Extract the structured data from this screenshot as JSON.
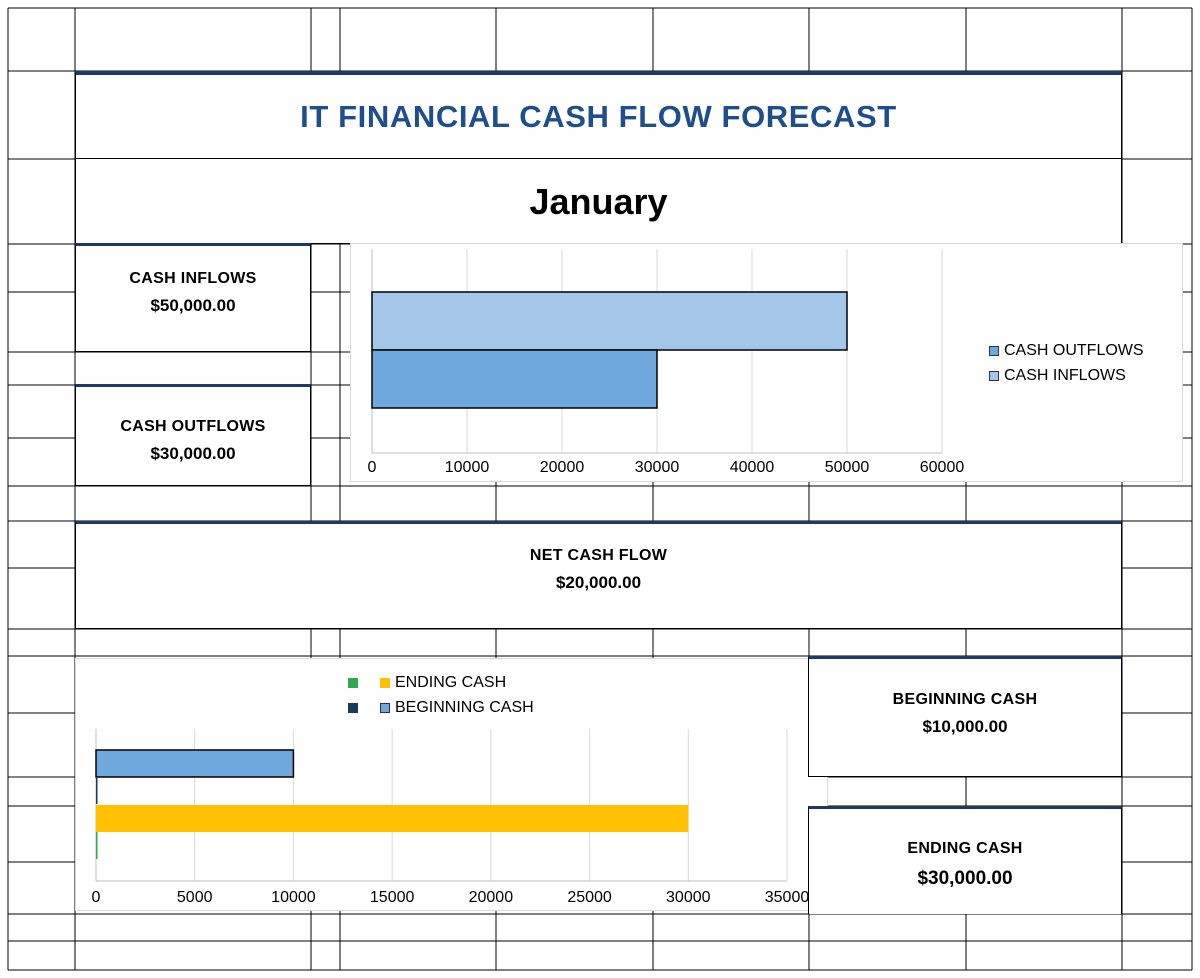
{
  "page": {
    "title": "IT FINANCIAL CASH FLOW FORECAST",
    "month": "January"
  },
  "cards": {
    "cash_inflows": {
      "label": "CASH INFLOWS",
      "value": "$50,000.00"
    },
    "cash_outflows": {
      "label": "CASH OUTFLOWS",
      "value": "$30,000.00"
    },
    "net_cash_flow": {
      "label": "NET CASH FLOW",
      "value": "$20,000.00"
    },
    "beginning_cash": {
      "label": "BEGINNING CASH",
      "value": "$10,000.00"
    },
    "ending_cash": {
      "label": "ENDING CASH",
      "value": "$30,000.00"
    }
  },
  "colors": {
    "title": "#1f4e8c",
    "accent_border": "#1f3864",
    "inflow_bar": "#a4c6e8",
    "outflow_bar": "#6fa8dc",
    "beginning_cash_bar": "#6fa8dc",
    "ending_cash_bar": "#ffc000",
    "ending_cash_marker": "#2eaa4f",
    "beginning_cash_marker": "#1b3a5c",
    "gridline": "#d9d9d9"
  },
  "chart_data": [
    {
      "type": "bar",
      "orientation": "horizontal",
      "title": "",
      "xlabel": "",
      "ylabel": "",
      "xlim": [
        0,
        60000
      ],
      "x_ticks": [
        0,
        10000,
        20000,
        30000,
        40000,
        50000,
        60000
      ],
      "grid": true,
      "legend": "right",
      "series": [
        {
          "name": "CASH INFLOWS",
          "value": 50000,
          "color": "#a4c6e8"
        },
        {
          "name": "CASH OUTFLOWS",
          "value": 30000,
          "color": "#6fa8dc"
        }
      ],
      "legend_entries": [
        "CASH OUTFLOWS",
        "CASH INFLOWS"
      ]
    },
    {
      "type": "bar",
      "orientation": "horizontal",
      "title": "",
      "xlabel": "",
      "ylabel": "",
      "xlim": [
        0,
        35000
      ],
      "x_ticks": [
        0,
        5000,
        10000,
        15000,
        20000,
        25000,
        30000,
        35000
      ],
      "grid": true,
      "legend": "top",
      "series": [
        {
          "name": "BEGINNING CASH",
          "value": 10000,
          "color": "#6fa8dc",
          "marker_color": "#1b3a5c"
        },
        {
          "name": "ENDING CASH",
          "value": 30000,
          "color": "#ffc000",
          "marker_color": "#2eaa4f"
        }
      ],
      "legend_entries": [
        "ENDING CASH",
        "BEGINNING CASH"
      ]
    }
  ]
}
